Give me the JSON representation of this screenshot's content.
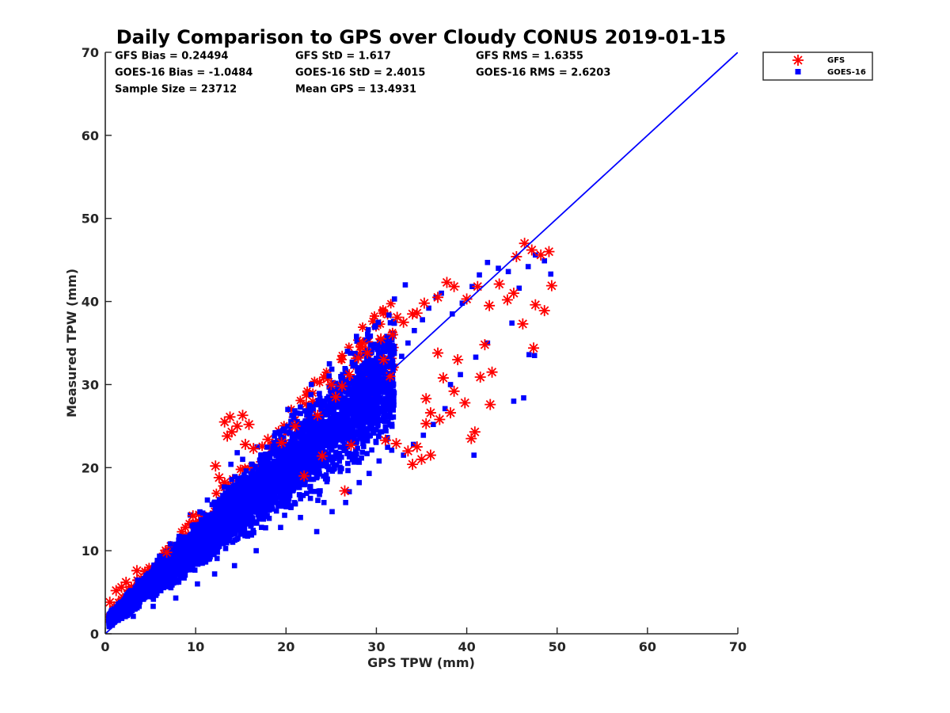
{
  "chart_data": {
    "type": "scatter",
    "title": "Daily Comparison to GPS over Cloudy CONUS 2019-01-15",
    "xlabel": "GPS TPW (mm)",
    "ylabel": "Measured TPW (mm)",
    "xlim": [
      0,
      70
    ],
    "ylim": [
      0,
      70
    ],
    "xticks": [
      "0",
      "10",
      "20",
      "30",
      "40",
      "50",
      "60",
      "70"
    ],
    "yticks": [
      "0",
      "10",
      "20",
      "30",
      "40",
      "50",
      "60",
      "70"
    ],
    "grid": false,
    "legend_position": "outside-top-right",
    "stats": [
      [
        "GFS Bias = 0.24494",
        "GFS StD = 1.617",
        "GFS RMS = 1.6355"
      ],
      [
        "GOES-16 Bias = -1.0484",
        "GOES-16 StD = 2.4015",
        "GOES-16 RMS = 2.6203"
      ],
      [
        "Sample Size = 23712",
        "Mean GPS = 13.4931"
      ]
    ],
    "reference_line": {
      "x": [
        0,
        70
      ],
      "y": [
        0,
        70
      ],
      "color": "#0000ff"
    },
    "series": [
      {
        "name": "GFS",
        "marker": "asterisk",
        "color": "#ff0000",
        "points": [
          [
            0.5,
            3.8
          ],
          [
            1.2,
            5.2
          ],
          [
            1.8,
            5.6
          ],
          [
            2.3,
            6.2
          ],
          [
            3.5,
            7.6
          ],
          [
            6.8,
            9.8
          ],
          [
            9.7,
            14.2
          ],
          [
            12.6,
            18.8
          ],
          [
            12.2,
            20.2
          ],
          [
            13.2,
            25.5
          ],
          [
            13.8,
            26.1
          ],
          [
            14.6,
            25.0
          ],
          [
            15.2,
            26.3
          ],
          [
            15.9,
            25.2
          ],
          [
            14.0,
            24.3
          ],
          [
            13.5,
            23.8
          ],
          [
            15.5,
            22.8
          ],
          [
            16.4,
            22.3
          ],
          [
            18.0,
            23.4
          ],
          [
            19.5,
            23.0
          ],
          [
            21.0,
            25.0
          ],
          [
            23.5,
            26.3
          ],
          [
            25.5,
            28.5
          ],
          [
            26.2,
            29.8
          ],
          [
            27.0,
            31.2
          ],
          [
            28.0,
            33.2
          ],
          [
            29.0,
            33.8
          ],
          [
            30.5,
            35.5
          ],
          [
            31.8,
            36.0
          ],
          [
            33.0,
            37.5
          ],
          [
            34.0,
            38.5
          ],
          [
            35.3,
            39.8
          ],
          [
            36.8,
            40.5
          ],
          [
            37.8,
            42.3
          ],
          [
            38.6,
            41.8
          ],
          [
            40.0,
            40.3
          ],
          [
            41.2,
            41.8
          ],
          [
            42.5,
            39.5
          ],
          [
            43.6,
            42.1
          ],
          [
            44.5,
            40.2
          ],
          [
            45.5,
            45.4
          ],
          [
            46.4,
            47.0
          ],
          [
            47.2,
            46.2
          ],
          [
            48.2,
            45.6
          ],
          [
            49.1,
            46.0
          ],
          [
            49.4,
            41.9
          ],
          [
            48.6,
            38.9
          ],
          [
            47.6,
            39.6
          ],
          [
            46.2,
            37.3
          ],
          [
            45.2,
            41.0
          ],
          [
            42.0,
            34.8
          ],
          [
            41.5,
            30.9
          ],
          [
            42.6,
            27.6
          ],
          [
            40.9,
            24.3
          ],
          [
            39.8,
            27.8
          ],
          [
            38.2,
            26.6
          ],
          [
            37.0,
            25.8
          ],
          [
            36.0,
            26.6
          ],
          [
            35.5,
            25.3
          ],
          [
            34.5,
            22.5
          ],
          [
            33.5,
            22.0
          ],
          [
            32.2,
            22.9
          ],
          [
            31.0,
            23.3
          ],
          [
            36.0,
            21.5
          ],
          [
            35.0,
            21.0
          ],
          [
            34.0,
            20.4
          ],
          [
            40.5,
            23.5
          ],
          [
            47.4,
            34.4
          ],
          [
            42.8,
            31.5
          ],
          [
            38.6,
            29.2
          ],
          [
            37.4,
            30.8
          ],
          [
            35.5,
            28.3
          ],
          [
            36.8,
            33.8
          ],
          [
            39.0,
            33.0
          ],
          [
            31.5,
            31.0
          ],
          [
            27.2,
            22.7
          ],
          [
            24.0,
            21.4
          ],
          [
            26.5,
            17.2
          ],
          [
            22.0,
            19.0
          ],
          [
            25.0,
            30.0
          ],
          [
            28.5,
            35.0
          ],
          [
            32.3,
            38.1
          ],
          [
            34.5,
            38.6
          ],
          [
            30.8,
            33.0
          ]
        ]
      },
      {
        "name": "GOES-16",
        "marker": "square",
        "color": "#0000ff",
        "band": {
          "x_range": [
            0.4,
            32.0
          ],
          "y_min_slope": 0.65,
          "y_max_slope": 1.22,
          "y_max_intercept": 2.2
        },
        "points": [
          [
            0.8,
            2.0
          ],
          [
            1.5,
            3.6
          ],
          [
            2.8,
            5.2
          ],
          [
            4.5,
            6.3
          ],
          [
            6.1,
            8.0
          ],
          [
            8.4,
            9.2
          ],
          [
            10.2,
            11.5
          ],
          [
            12.0,
            12.2
          ],
          [
            13.6,
            13.8
          ],
          [
            15.4,
            14.5
          ],
          [
            17.2,
            17.2
          ],
          [
            19.0,
            18.8
          ],
          [
            21.0,
            20.5
          ],
          [
            23.0,
            22.0
          ],
          [
            25.0,
            24.4
          ],
          [
            27.0,
            26.5
          ],
          [
            29.0,
            28.7
          ],
          [
            30.5,
            30.0
          ],
          [
            31.5,
            32.3
          ],
          [
            32.8,
            33.4
          ],
          [
            33.5,
            35.0
          ],
          [
            34.2,
            36.5
          ],
          [
            35.1,
            37.8
          ],
          [
            35.8,
            39.2
          ],
          [
            36.6,
            40.5
          ],
          [
            37.2,
            41.0
          ],
          [
            38.4,
            38.5
          ],
          [
            39.5,
            39.8
          ],
          [
            40.6,
            41.8
          ],
          [
            41.4,
            43.2
          ],
          [
            42.3,
            44.7
          ],
          [
            43.5,
            44.0
          ],
          [
            44.6,
            43.6
          ],
          [
            45.8,
            41.6
          ],
          [
            46.8,
            44.2
          ],
          [
            47.6,
            45.6
          ],
          [
            48.6,
            44.9
          ],
          [
            49.3,
            43.3
          ],
          [
            42.3,
            35.0
          ],
          [
            41.0,
            33.3
          ],
          [
            39.3,
            31.2
          ],
          [
            38.2,
            30.0
          ],
          [
            37.6,
            27.1
          ],
          [
            36.3,
            25.2
          ],
          [
            35.2,
            23.9
          ],
          [
            34.1,
            22.8
          ],
          [
            33.0,
            21.5
          ],
          [
            31.7,
            22.1
          ],
          [
            30.3,
            20.8
          ],
          [
            29.2,
            19.3
          ],
          [
            28.1,
            18.2
          ],
          [
            27.0,
            17.1
          ],
          [
            26.6,
            15.8
          ],
          [
            25.1,
            14.7
          ],
          [
            24.2,
            15.8
          ],
          [
            40.8,
            21.5
          ],
          [
            45.2,
            28.0
          ],
          [
            46.3,
            28.4
          ],
          [
            46.9,
            33.6
          ],
          [
            47.5,
            33.5
          ],
          [
            45.0,
            37.4
          ],
          [
            33.2,
            42.0
          ],
          [
            32.0,
            40.3
          ],
          [
            30.2,
            37.5
          ],
          [
            29.1,
            36.6
          ],
          [
            27.8,
            35.8
          ],
          [
            26.8,
            34.0
          ],
          [
            24.8,
            32.5
          ],
          [
            22.8,
            30.0
          ],
          [
            20.2,
            27.0
          ],
          [
            18.8,
            24.2
          ],
          [
            16.8,
            22.5
          ],
          [
            15.2,
            21.0
          ],
          [
            13.9,
            20.4
          ],
          [
            14.6,
            21.8
          ],
          [
            16.1,
            19.3
          ],
          [
            11.3,
            16.1
          ],
          [
            9.4,
            14.3
          ],
          [
            27.2,
            25.0
          ],
          [
            26.8,
            24.5
          ],
          [
            19.4,
            12.8
          ],
          [
            21.6,
            14.0
          ],
          [
            22.7,
            16.3
          ],
          [
            23.4,
            12.3
          ],
          [
            14.3,
            8.2
          ],
          [
            16.7,
            10.0
          ],
          [
            12.1,
            7.2
          ],
          [
            10.2,
            6.0
          ],
          [
            7.8,
            4.3
          ],
          [
            5.3,
            3.3
          ],
          [
            3.1,
            2.1
          ]
        ]
      }
    ]
  }
}
